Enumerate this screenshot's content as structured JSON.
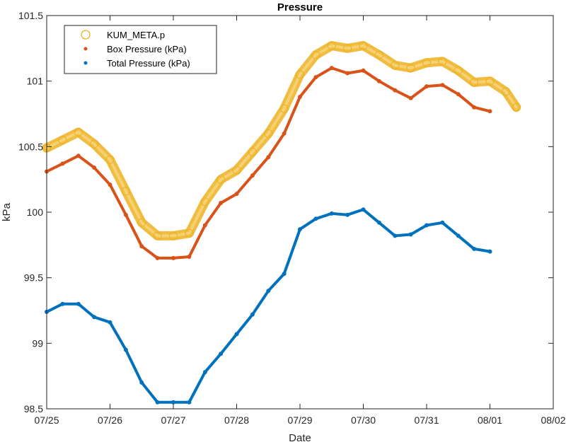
{
  "chart_data": {
    "type": "line",
    "title": "Pressure",
    "xlabel": "Date",
    "ylabel": "kPa",
    "x_ticks": [
      "07/25",
      "07/26",
      "07/27",
      "07/28",
      "07/29",
      "07/30",
      "07/31",
      "08/01",
      "08/02"
    ],
    "xlim": [
      "07/25",
      "08/02"
    ],
    "y_ticks": [
      "98.5",
      "99",
      "99.5",
      "100",
      "100.5",
      "101",
      "101.5"
    ],
    "ylim": [
      98.5,
      101.5
    ],
    "grid": false,
    "legend_position": "top-left",
    "series": [
      {
        "name": "KUM_META.p",
        "marker": "circle",
        "color": "#EDB120",
        "x": [
          "07/25 00:00",
          "07/25 06:00",
          "07/25 12:00",
          "07/25 18:00",
          "07/26 00:00",
          "07/26 06:00",
          "07/26 12:00",
          "07/26 18:00",
          "07/27 00:00",
          "07/27 06:00",
          "07/27 12:00",
          "07/27 18:00",
          "07/28 00:00",
          "07/28 06:00",
          "07/28 12:00",
          "07/28 18:00",
          "07/29 00:00",
          "07/29 06:00",
          "07/29 12:00",
          "07/29 18:00",
          "07/30 00:00",
          "07/30 06:00",
          "07/30 12:00",
          "07/30 18:00",
          "07/31 00:00",
          "07/31 06:00",
          "07/31 12:00",
          "07/31 18:00",
          "08/01 00:00",
          "08/01 06:00",
          "08/01 10:00"
        ],
        "y": [
          100.49,
          100.55,
          100.61,
          100.52,
          100.4,
          100.16,
          99.92,
          99.82,
          99.82,
          99.84,
          100.08,
          100.25,
          100.32,
          100.46,
          100.6,
          100.79,
          101.05,
          101.2,
          101.27,
          101.25,
          101.27,
          101.2,
          101.12,
          101.1,
          101.14,
          101.15,
          101.08,
          100.99,
          101.0,
          100.92,
          100.8
        ]
      },
      {
        "name": "Box Pressure (kPa)",
        "marker": "dot",
        "color": "#D95319",
        "x": [
          "07/25 00:00",
          "07/25 06:00",
          "07/25 12:00",
          "07/25 18:00",
          "07/26 00:00",
          "07/26 06:00",
          "07/26 12:00",
          "07/26 18:00",
          "07/27 00:00",
          "07/27 06:00",
          "07/27 12:00",
          "07/27 18:00",
          "07/28 00:00",
          "07/28 06:00",
          "07/28 12:00",
          "07/28 18:00",
          "07/29 00:00",
          "07/29 06:00",
          "07/29 12:00",
          "07/29 18:00",
          "07/30 00:00",
          "07/30 06:00",
          "07/30 12:00",
          "07/30 18:00",
          "07/31 00:00",
          "07/31 06:00",
          "07/31 12:00",
          "07/31 18:00",
          "08/01 00:00"
        ],
        "y": [
          100.31,
          100.37,
          100.43,
          100.34,
          100.21,
          99.98,
          99.74,
          99.65,
          99.65,
          99.66,
          99.9,
          100.07,
          100.14,
          100.28,
          100.42,
          100.6,
          100.88,
          101.03,
          101.1,
          101.06,
          101.08,
          101.0,
          100.93,
          100.87,
          100.96,
          100.97,
          100.9,
          100.8,
          100.77
        ]
      },
      {
        "name": "Total Pressure (kPa)",
        "marker": "dot",
        "color": "#0072BD",
        "x": [
          "07/25 00:00",
          "07/25 06:00",
          "07/25 12:00",
          "07/25 18:00",
          "07/26 00:00",
          "07/26 06:00",
          "07/26 12:00",
          "07/26 18:00",
          "07/27 00:00",
          "07/27 06:00",
          "07/27 12:00",
          "07/27 18:00",
          "07/28 00:00",
          "07/28 06:00",
          "07/28 12:00",
          "07/28 18:00",
          "07/29 00:00",
          "07/29 06:00",
          "07/29 12:00",
          "07/29 18:00",
          "07/30 00:00",
          "07/30 06:00",
          "07/30 12:00",
          "07/30 18:00",
          "07/31 00:00",
          "07/31 06:00",
          "07/31 12:00",
          "07/31 18:00",
          "08/01 00:00"
        ],
        "y": [
          99.24,
          99.3,
          99.3,
          99.2,
          99.16,
          98.95,
          98.7,
          98.55,
          98.55,
          98.55,
          98.78,
          98.92,
          99.07,
          99.22,
          99.4,
          99.53,
          99.87,
          99.95,
          99.99,
          99.98,
          100.02,
          99.92,
          99.82,
          99.83,
          99.9,
          99.92,
          99.82,
          99.72,
          99.7
        ]
      }
    ]
  }
}
